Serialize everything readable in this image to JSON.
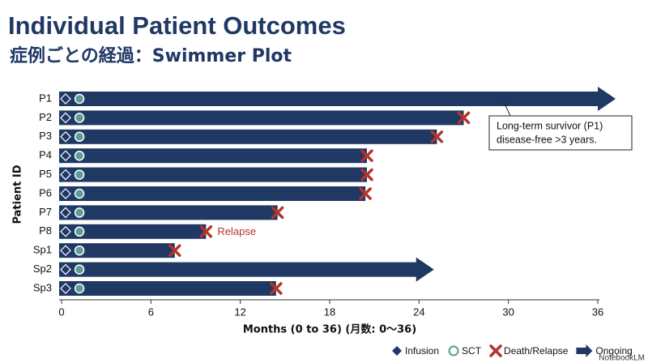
{
  "chart_data": {
    "type": "swimmer",
    "title": "Individual Patient Outcomes",
    "subtitle": "症例ごとの経過：Swimmer Plot",
    "x_label": "Months (0 to 36) (月数: 0〜36)",
    "y_label": "Patient ID",
    "categories": [
      "P1",
      "P2",
      "P3",
      "P4",
      "P5",
      "P6",
      "P7",
      "P8",
      "Sp1",
      "Sp2",
      "Sp3"
    ],
    "values": [
      37.2,
      27,
      25.2,
      20.5,
      20.5,
      20.4,
      14.5,
      9.7,
      7.6,
      25,
      14.4
    ],
    "status": [
      "ongoing",
      "death",
      "death",
      "death",
      "death",
      "death",
      "death",
      "death",
      "death",
      "ongoing",
      "death"
    ],
    "infusion": [
      0,
      0,
      0,
      0,
      0,
      0,
      0,
      0,
      0,
      0,
      0
    ],
    "sct": [
      1.2,
      1.2,
      1.2,
      1.2,
      1.2,
      1.2,
      1.2,
      1.2,
      1.2,
      1.2,
      1.2
    ],
    "bar_color": "#1f3864",
    "sct_color": "#5b9e98",
    "event_color": "#b5332a",
    "xlim": [
      0,
      36
    ],
    "xticks": [
      0,
      6,
      12,
      18,
      24,
      30,
      36
    ],
    "annotations": [
      {
        "text": "Relapse",
        "target": "P8"
      },
      {
        "lines": [
          "Long-term survivor (P1)",
          "disease-free >3 years."
        ],
        "target": "P1"
      }
    ],
    "legend": [
      "Infusion",
      "SCT",
      "Death/Relapse",
      "Ongoing"
    ],
    "watermark": "NotebookLM"
  }
}
